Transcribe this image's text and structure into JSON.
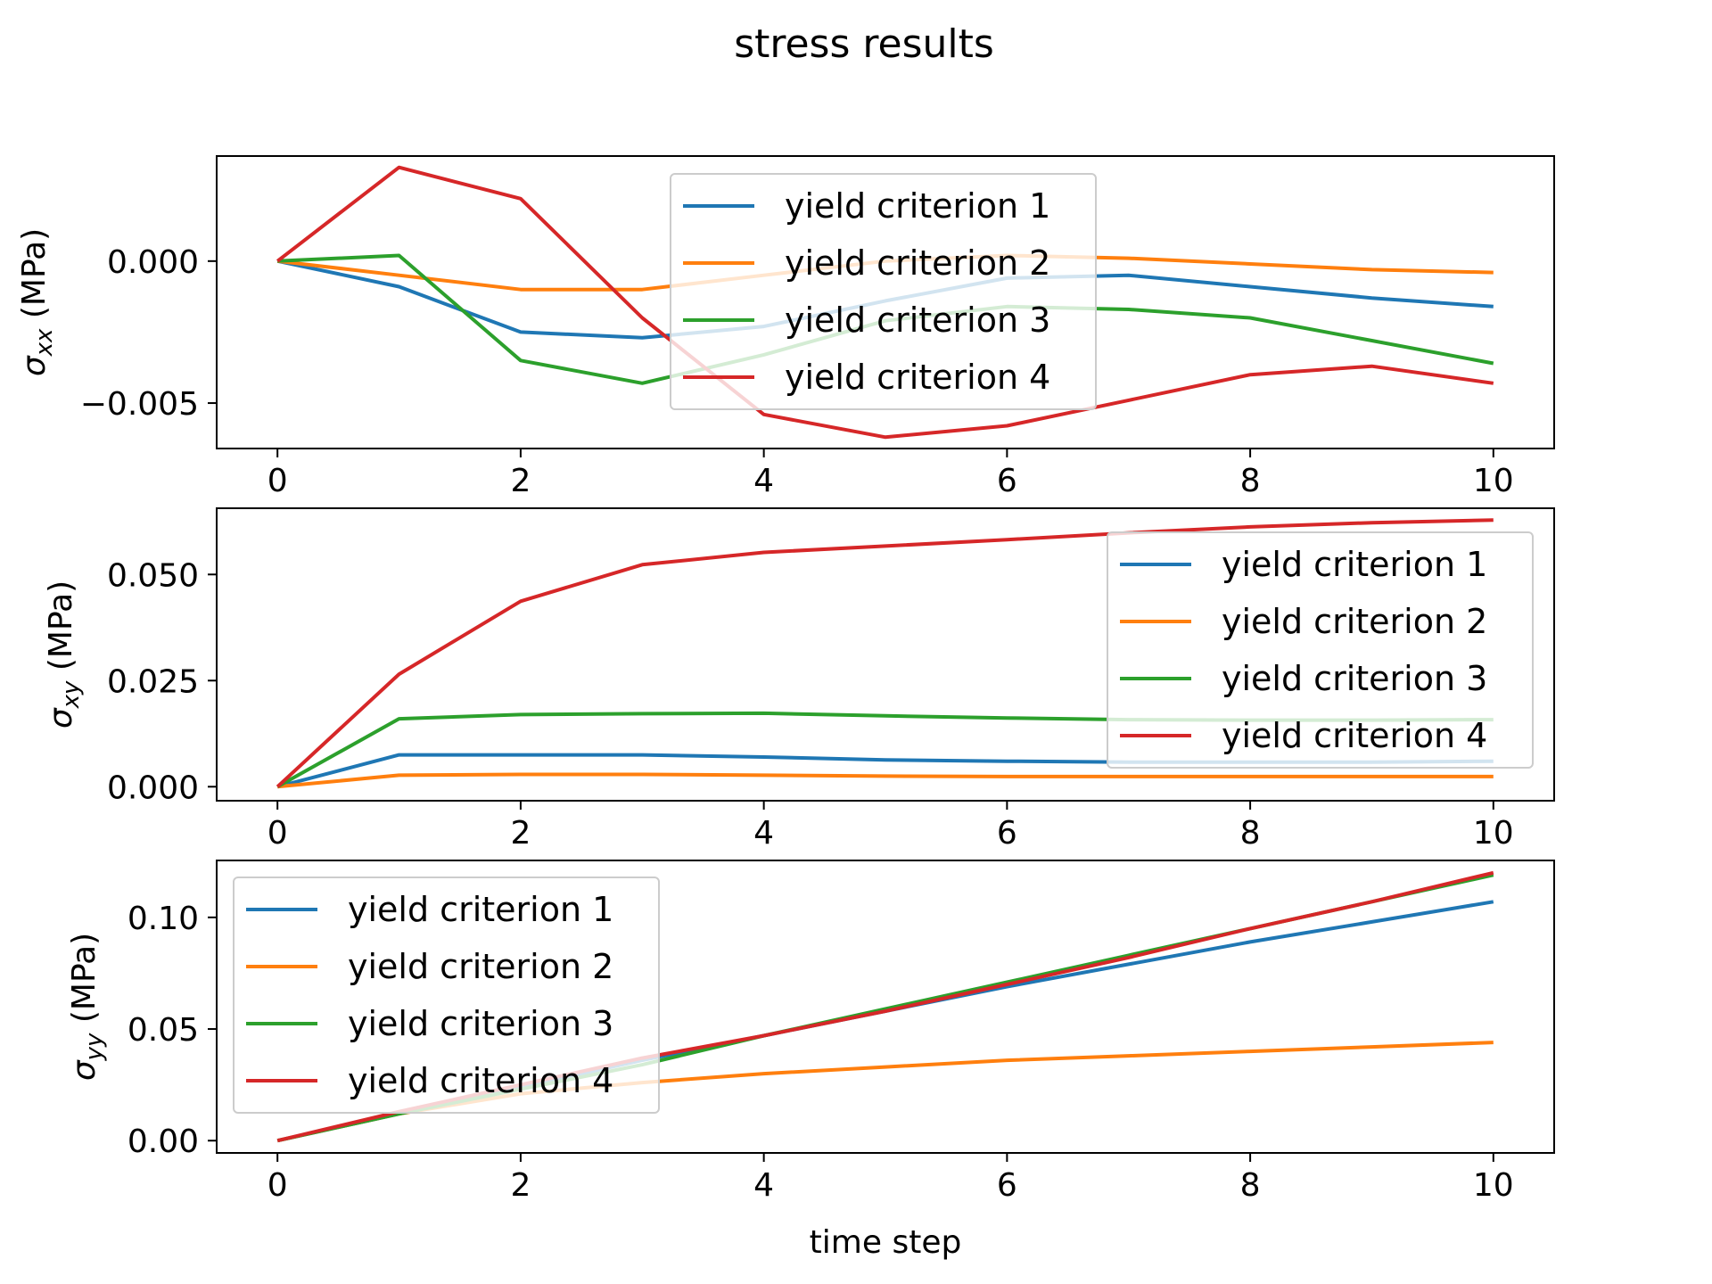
{
  "figure": {
    "title": "stress results"
  },
  "chart_data": [
    {
      "type": "line",
      "ylabel_main": "σ",
      "ylabel_sub": "xx",
      "ylabel_unit": " (MPa)",
      "xlabel": "",
      "xlim": [
        -0.5,
        10.5
      ],
      "ylim": [
        -0.0066,
        0.0037
      ],
      "xticks": [
        "0",
        "2",
        "4",
        "6",
        "8",
        "10"
      ],
      "yticks": [
        {
          "value": 0.0,
          "label": "0.000"
        },
        {
          "value": -0.005,
          "label": "−0.005"
        }
      ],
      "grid": false,
      "legend_placement": "upper-center",
      "x": [
        0,
        1,
        2,
        3,
        4,
        5,
        6,
        7,
        8,
        9,
        10
      ],
      "series": [
        {
          "name": "yield criterion 1",
          "color": "#1f77b4",
          "values": [
            0,
            -0.0009,
            -0.0025,
            -0.0027,
            -0.0023,
            -0.0014,
            -0.0006,
            -0.0005,
            -0.0009,
            -0.0013,
            -0.0016
          ]
        },
        {
          "name": "yield criterion 2",
          "color": "#ff7f0e",
          "values": [
            0,
            -0.0005,
            -0.001,
            -0.001,
            -0.0005,
            0.0,
            0.0002,
            0.0001,
            -0.0001,
            -0.0003,
            -0.0004
          ]
        },
        {
          "name": "yield criterion 3",
          "color": "#2ca02c",
          "values": [
            0,
            0.0002,
            -0.0035,
            -0.0043,
            -0.0033,
            -0.0021,
            -0.0016,
            -0.0017,
            -0.002,
            -0.0028,
            -0.0036
          ]
        },
        {
          "name": "yield criterion 4",
          "color": "#d62728",
          "values": [
            0,
            0.0033,
            0.0022,
            -0.002,
            -0.0054,
            -0.0062,
            -0.0058,
            -0.0049,
            -0.004,
            -0.0037,
            -0.0043
          ]
        }
      ]
    },
    {
      "type": "line",
      "ylabel_main": "σ",
      "ylabel_sub": "xy",
      "ylabel_unit": " (MPa)",
      "xlabel": "",
      "xlim": [
        -0.5,
        10.5
      ],
      "ylim": [
        -0.0033,
        0.0656
      ],
      "xticks": [
        "0",
        "2",
        "4",
        "6",
        "8",
        "10"
      ],
      "yticks": [
        {
          "value": 0.0,
          "label": "0.000"
        },
        {
          "value": 0.025,
          "label": "0.025"
        },
        {
          "value": 0.05,
          "label": "0.050"
        }
      ],
      "grid": false,
      "legend_placement": "right",
      "x": [
        0,
        1,
        2,
        3,
        4,
        5,
        6,
        7,
        8,
        9,
        10
      ],
      "series": [
        {
          "name": "yield criterion 1",
          "color": "#1f77b4",
          "values": [
            0,
            0.0075,
            0.0075,
            0.0075,
            0.007,
            0.0063,
            0.006,
            0.0058,
            0.0058,
            0.0058,
            0.006
          ]
        },
        {
          "name": "yield criterion 2",
          "color": "#ff7f0e",
          "values": [
            0,
            0.0027,
            0.0029,
            0.0029,
            0.0027,
            0.0025,
            0.0024,
            0.0024,
            0.0024,
            0.0024,
            0.0024
          ]
        },
        {
          "name": "yield criterion 3",
          "color": "#2ca02c",
          "values": [
            0,
            0.016,
            0.017,
            0.0172,
            0.0173,
            0.0167,
            0.0162,
            0.0158,
            0.0157,
            0.0157,
            0.0158
          ]
        },
        {
          "name": "yield criterion 4",
          "color": "#d62728",
          "values": [
            0,
            0.0265,
            0.0437,
            0.0523,
            0.0552,
            0.0567,
            0.0582,
            0.0598,
            0.0612,
            0.0622,
            0.0628
          ]
        }
      ]
    },
    {
      "type": "line",
      "ylabel_main": "σ",
      "ylabel_sub": "yy",
      "ylabel_unit": " (MPa)",
      "xlabel": "time step",
      "xlim": [
        -0.5,
        10.5
      ],
      "ylim": [
        -0.0055,
        0.1255
      ],
      "xticks": [
        "0",
        "2",
        "4",
        "6",
        "8",
        "10"
      ],
      "yticks": [
        {
          "value": 0.0,
          "label": "0.00"
        },
        {
          "value": 0.05,
          "label": "0.05"
        },
        {
          "value": 0.1,
          "label": "0.10"
        }
      ],
      "grid": false,
      "legend_placement": "upper-left",
      "x": [
        0,
        1,
        2,
        3,
        4,
        5,
        6,
        7,
        8,
        9,
        10
      ],
      "series": [
        {
          "name": "yield criterion 1",
          "color": "#1f77b4",
          "values": [
            0,
            0.012,
            0.024,
            0.036,
            0.047,
            0.058,
            0.069,
            0.079,
            0.089,
            0.098,
            0.107
          ]
        },
        {
          "name": "yield criterion 2",
          "color": "#ff7f0e",
          "values": [
            0,
            0.012,
            0.021,
            0.026,
            0.03,
            0.033,
            0.036,
            0.038,
            0.04,
            0.042,
            0.044
          ]
        },
        {
          "name": "yield criterion 3",
          "color": "#2ca02c",
          "values": [
            0,
            0.012,
            0.023,
            0.034,
            0.047,
            0.059,
            0.071,
            0.083,
            0.095,
            0.107,
            0.119
          ]
        },
        {
          "name": "yield criterion 4",
          "color": "#d62728",
          "values": [
            0,
            0.013,
            0.025,
            0.037,
            0.047,
            0.058,
            0.07,
            0.082,
            0.095,
            0.107,
            0.12
          ]
        }
      ]
    }
  ]
}
